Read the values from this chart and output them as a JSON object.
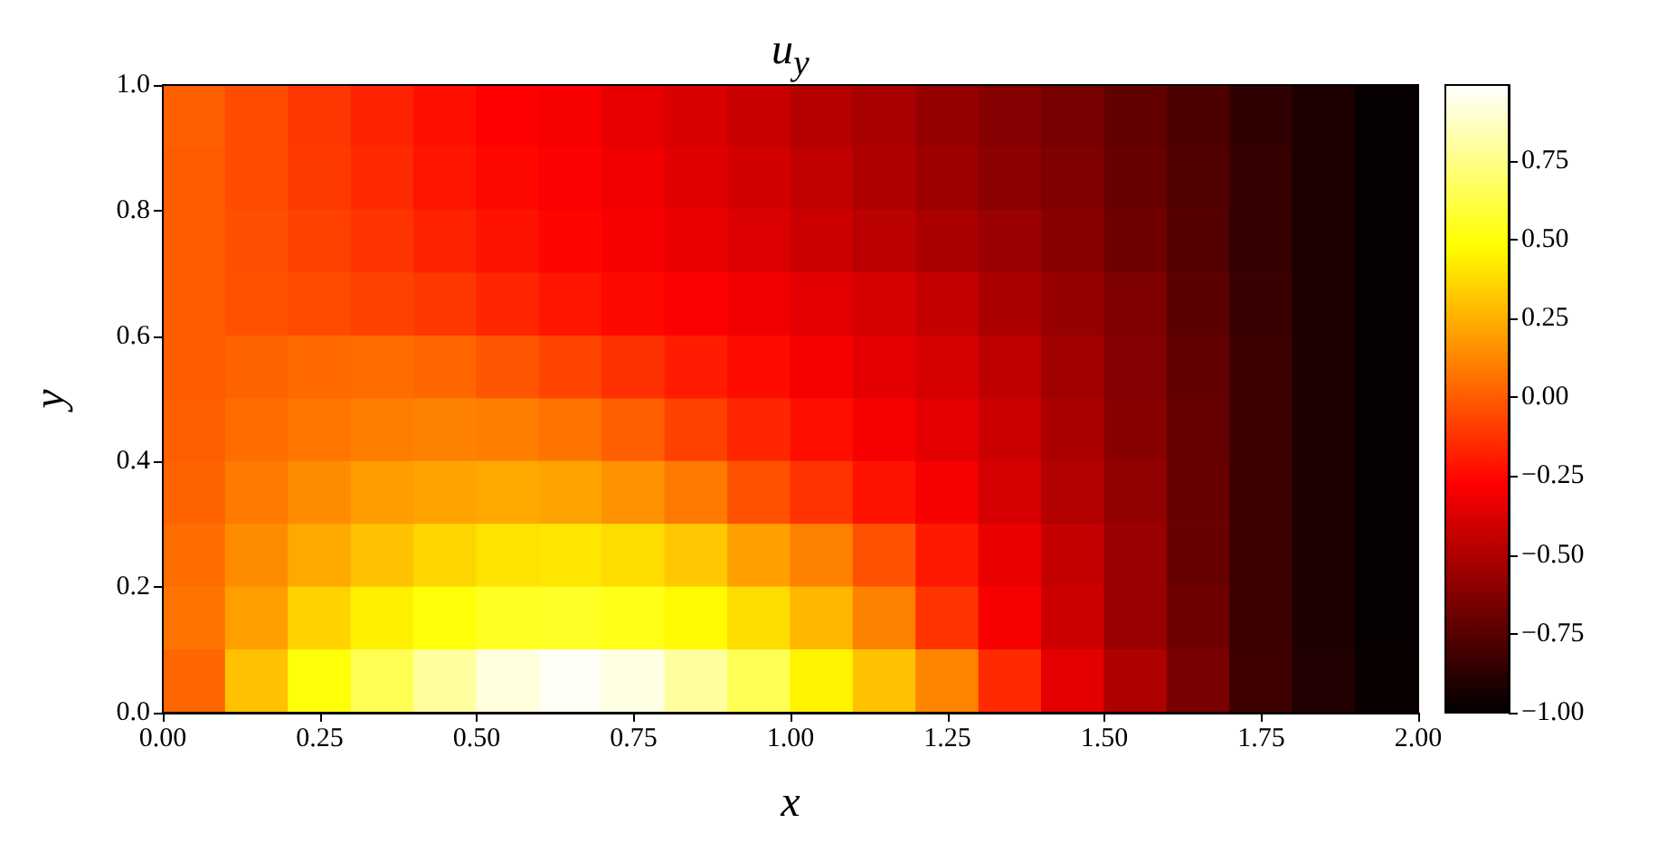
{
  "chart_data": {
    "type": "heatmap",
    "title": "u$_{y}$",
    "xlabel": "x",
    "ylabel": "y",
    "xlim": [
      0,
      2
    ],
    "ylim": [
      0,
      1
    ],
    "xticks": [
      {
        "value": 0,
        "label": "0.00"
      },
      {
        "value": 0.25,
        "label": "0.25"
      },
      {
        "value": 0.5,
        "label": "0.50"
      },
      {
        "value": 0.75,
        "label": "0.75"
      },
      {
        "value": 1,
        "label": "1.00"
      },
      {
        "value": 1.25,
        "label": "1.25"
      },
      {
        "value": 1.5,
        "label": "1.50"
      },
      {
        "value": 1.75,
        "label": "1.75"
      },
      {
        "value": 2,
        "label": "2.00"
      }
    ],
    "yticks": [
      {
        "value": 0,
        "label": "0.0"
      },
      {
        "value": 0.2,
        "label": "0.2"
      },
      {
        "value": 0.4,
        "label": "0.4"
      },
      {
        "value": 0.6,
        "label": "0.6"
      },
      {
        "value": 0.8,
        "label": "0.8"
      },
      {
        "value": 1,
        "label": "1.0"
      }
    ],
    "clim": [
      -1,
      0.99
    ],
    "cticks": [
      {
        "value": -1,
        "label": "−1.00"
      },
      {
        "value": -0.75,
        "label": "−0.75"
      },
      {
        "value": -0.5,
        "label": "−0.50"
      },
      {
        "value": -0.25,
        "label": "−0.25"
      },
      {
        "value": 0,
        "label": "0.00"
      },
      {
        "value": 0.25,
        "label": "0.25"
      },
      {
        "value": 0.5,
        "label": "0.50"
      },
      {
        "value": 0.75,
        "label": "0.75"
      }
    ],
    "cells": [
      [
        0.01,
        -0.05,
        -0.11,
        -0.17,
        -0.23,
        -0.27,
        -0.29,
        -0.34,
        -0.38,
        -0.43,
        -0.48,
        -0.52,
        -0.57,
        -0.62,
        -0.66,
        -0.72,
        -0.78,
        -0.86,
        -0.92,
        -0.98
      ],
      [
        0.0,
        -0.05,
        -0.1,
        -0.15,
        -0.21,
        -0.25,
        -0.28,
        -0.31,
        -0.36,
        -0.4,
        -0.45,
        -0.5,
        -0.55,
        -0.6,
        -0.64,
        -0.7,
        -0.77,
        -0.85,
        -0.92,
        -0.98
      ],
      [
        0.0,
        -0.04,
        -0.08,
        -0.12,
        -0.17,
        -0.22,
        -0.26,
        -0.29,
        -0.33,
        -0.37,
        -0.42,
        -0.47,
        -0.51,
        -0.56,
        -0.61,
        -0.68,
        -0.76,
        -0.85,
        -0.92,
        -0.98
      ],
      [
        0.0,
        -0.03,
        -0.05,
        -0.08,
        -0.11,
        -0.16,
        -0.21,
        -0.25,
        -0.28,
        -0.31,
        -0.35,
        -0.39,
        -0.44,
        -0.51,
        -0.57,
        -0.64,
        -0.74,
        -0.84,
        -0.92,
        -0.98
      ],
      [
        0.0,
        0.02,
        0.04,
        0.05,
        0.03,
        -0.02,
        -0.07,
        -0.13,
        -0.19,
        -0.24,
        -0.3,
        -0.35,
        -0.39,
        -0.46,
        -0.54,
        -0.62,
        -0.72,
        -0.83,
        -0.92,
        -0.98
      ],
      [
        0.01,
        0.05,
        0.08,
        0.1,
        0.11,
        0.1,
        0.07,
        0.01,
        -0.08,
        -0.16,
        -0.23,
        -0.3,
        -0.35,
        -0.42,
        -0.51,
        -0.61,
        -0.71,
        -0.83,
        -0.92,
        -0.98
      ],
      [
        0.02,
        0.09,
        0.14,
        0.19,
        0.21,
        0.23,
        0.21,
        0.16,
        0.09,
        -0.03,
        -0.12,
        -0.22,
        -0.3,
        -0.39,
        -0.49,
        -0.58,
        -0.7,
        -0.83,
        -0.92,
        -0.98
      ],
      [
        0.05,
        0.14,
        0.23,
        0.3,
        0.36,
        0.4,
        0.41,
        0.38,
        0.32,
        0.2,
        0.11,
        -0.03,
        -0.2,
        -0.33,
        -0.44,
        -0.56,
        -0.7,
        -0.83,
        -0.92,
        -0.98
      ],
      [
        0.07,
        0.2,
        0.35,
        0.44,
        0.5,
        0.55,
        0.56,
        0.53,
        0.47,
        0.38,
        0.27,
        0.11,
        -0.12,
        -0.3,
        -0.42,
        -0.56,
        -0.68,
        -0.83,
        -0.92,
        -0.98
      ],
      [
        0.03,
        0.3,
        0.5,
        0.65,
        0.8,
        0.92,
        0.97,
        0.93,
        0.8,
        0.65,
        0.45,
        0.3,
        0.12,
        -0.15,
        -0.35,
        -0.5,
        -0.66,
        -0.82,
        -0.91,
        -0.97
      ]
    ]
  }
}
